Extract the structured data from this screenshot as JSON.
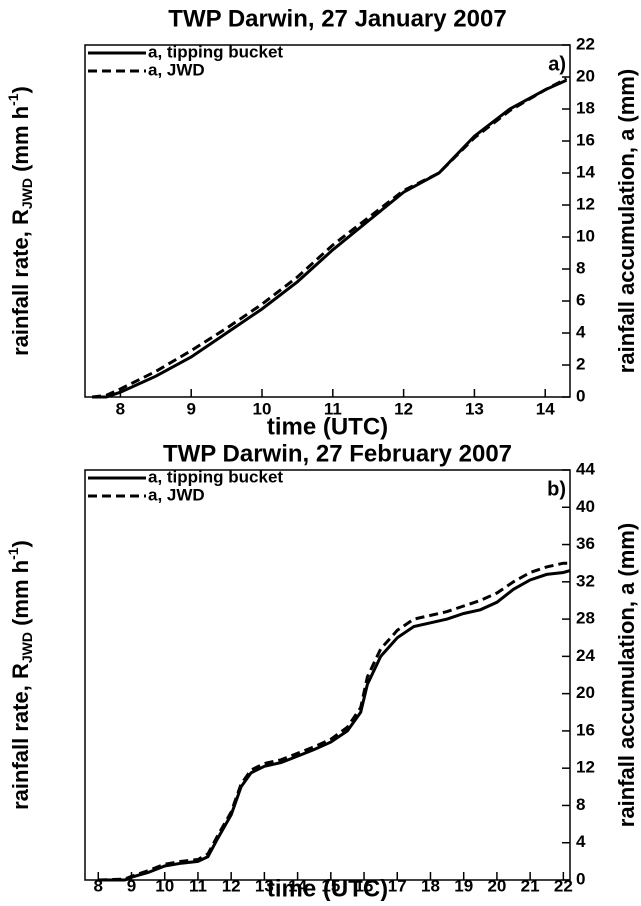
{
  "chart_data": [
    {
      "type": "line",
      "title": "TWP Darwin, 27 January 2007",
      "panel_label": "a)",
      "xlabel": "time (UTC)",
      "ylabel": {
        "text": "rainfall rate, R",
        "sub": "JWD",
        "unit": " (mm h",
        "sup": "-1",
        "close": ")"
      },
      "y2label": "rainfall accumulation, a (mm)",
      "xlim": [
        7.5,
        14.35
      ],
      "xticks": [
        8,
        9,
        10,
        11,
        12,
        13,
        14
      ],
      "y2lim": [
        0,
        22
      ],
      "y2ticks": [
        0,
        2,
        4,
        6,
        8,
        10,
        12,
        14,
        16,
        18,
        20,
        22
      ],
      "legend": "upper left",
      "x": [
        7.6,
        7.8,
        8.0,
        8.5,
        9.0,
        9.5,
        10.0,
        10.5,
        11.0,
        11.5,
        12.0,
        12.5,
        13.0,
        13.5,
        14.0,
        14.3
      ],
      "series": [
        {
          "name": "a, tipping bucket",
          "color": "#000000",
          "style": "solid",
          "axis": "y2",
          "values": [
            0,
            0,
            0.3,
            1.3,
            2.5,
            4.0,
            5.5,
            7.2,
            9.2,
            11.0,
            12.8,
            14.0,
            16.3,
            18.0,
            19.2,
            19.8
          ]
        },
        {
          "name": "a, JWD",
          "color": "#000000",
          "style": "dashed",
          "axis": "y2",
          "values": [
            0,
            0.1,
            0.5,
            1.6,
            2.9,
            4.3,
            5.8,
            7.5,
            9.5,
            11.2,
            12.9,
            14.0,
            16.2,
            17.9,
            19.2,
            19.9
          ]
        }
      ]
    },
    {
      "type": "line",
      "title": "TWP Darwin, 27 February 2007",
      "panel_label": "b)",
      "xlabel": "time (UTC)",
      "ylabel": {
        "text": "rainfall rate, R",
        "sub": "JWD",
        "unit": " (mm h",
        "sup": "-1",
        "close": ")"
      },
      "y2label": "rainfall accumulation, a (mm)",
      "xlim": [
        7.6,
        22.2
      ],
      "xticks": [
        8,
        9,
        10,
        11,
        12,
        13,
        14,
        15,
        16,
        17,
        18,
        19,
        20,
        21,
        22
      ],
      "y2lim": [
        0,
        44
      ],
      "y2ticks": [
        0,
        4,
        8,
        12,
        16,
        20,
        24,
        28,
        32,
        36,
        40,
        44
      ],
      "legend": "upper left",
      "x": [
        8,
        8.8,
        9,
        9.5,
        10,
        10.5,
        11,
        11.3,
        11.6,
        12,
        12.3,
        12.6,
        13,
        13.5,
        14,
        14.5,
        15,
        15.5,
        15.9,
        16.1,
        16.5,
        17,
        17.5,
        18,
        18.5,
        19,
        19.5,
        20,
        20.5,
        21,
        21.5,
        22,
        22.2
      ],
      "series": [
        {
          "name": "a, tipping bucket",
          "color": "#000000",
          "style": "solid",
          "axis": "y2",
          "values": [
            0,
            0,
            0.3,
            0.8,
            1.5,
            1.8,
            2.0,
            2.5,
            4.5,
            7,
            10,
            11.5,
            12.2,
            12.6,
            13.3,
            14,
            14.8,
            16,
            18,
            21,
            24,
            26,
            27.2,
            27.6,
            28,
            28.6,
            29,
            29.8,
            31.2,
            32.2,
            32.8,
            33,
            33.2
          ]
        },
        {
          "name": "a, JWD",
          "color": "#000000",
          "style": "dashed",
          "axis": "y2",
          "values": [
            0,
            0.1,
            0.4,
            1.0,
            1.7,
            2.0,
            2.2,
            2.8,
            4.8,
            7.3,
            10.3,
            11.8,
            12.5,
            12.9,
            13.6,
            14.3,
            15.1,
            16.4,
            18.5,
            21.8,
            24.8,
            26.8,
            28,
            28.4,
            28.8,
            29.4,
            30,
            30.8,
            32,
            33,
            33.6,
            34,
            34
          ]
        }
      ]
    }
  ]
}
